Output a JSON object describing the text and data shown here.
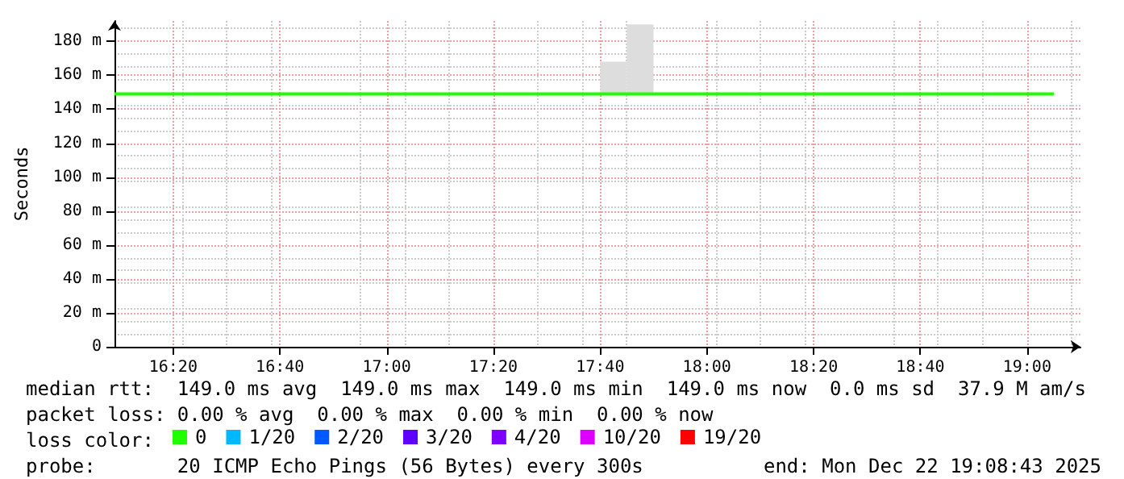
{
  "chart_data": {
    "type": "line",
    "ylabel": "Seconds",
    "xlim": [
      "2025-12-22T16:09",
      "2025-12-22T19:10"
    ],
    "xticks": [
      {
        "value": "2025-12-22T16:20",
        "label": "16:20"
      },
      {
        "value": "2025-12-22T16:40",
        "label": "16:40"
      },
      {
        "value": "2025-12-22T17:00",
        "label": "17:00"
      },
      {
        "value": "2025-12-22T17:20",
        "label": "17:20"
      },
      {
        "value": "2025-12-22T17:40",
        "label": "17:40"
      },
      {
        "value": "2025-12-22T18:00",
        "label": "18:00"
      },
      {
        "value": "2025-12-22T18:20",
        "label": "18:20"
      },
      {
        "value": "2025-12-22T18:40",
        "label": "18:40"
      },
      {
        "value": "2025-12-22T19:00",
        "label": "19:00"
      }
    ],
    "ylim": [
      0,
      192
    ],
    "yticks": [
      0,
      {
        "value": 20,
        "label": "20 m"
      },
      {
        "value": 40,
        "label": "40 m"
      },
      {
        "value": 60,
        "label": "60 m"
      },
      {
        "value": 80,
        "label": "80 m"
      },
      {
        "value": 100,
        "label": "100 m"
      },
      {
        "value": 120,
        "label": "120 m"
      },
      {
        "value": 140,
        "label": "140 m"
      },
      {
        "value": 160,
        "label": "160 m"
      },
      {
        "value": 180,
        "label": "180 m"
      }
    ],
    "grid": true,
    "legend": "bottom",
    "legend_title": "loss color:",
    "series": [
      {
        "type": "bar",
        "color": "#dddddd",
        "x": [
          "2025-12-22T17:42:30",
          "2025-12-22T17:47:30"
        ],
        "base": [
          149,
          149
        ],
        "values": [
          19,
          41
        ]
      },
      {
        "name": "0",
        "color": "#20ff00",
        "x": [
          "2025-12-22T16:09",
          "2025-12-22T19:05"
        ],
        "values": [
          149,
          149
        ]
      },
      {
        "name": "1/20",
        "color": "#00b8ff"
      },
      {
        "name": "2/20",
        "color": "#0059ff"
      },
      {
        "name": "3/20",
        "color": "#5e00ff"
      },
      {
        "name": "4/20",
        "color": "#7e00ff"
      },
      {
        "name": "10/20",
        "color": "#dd00ff"
      },
      {
        "name": "19/20",
        "color": "#ff0000"
      }
    ],
    "annotations": [
      "median rtt:  149.0 ms avg  149.0 ms max  149.0 ms min  149.0 ms now  0.0 ms sd  37.9 M am/s",
      "packet loss: 0.00 % avg  0.00 % max  0.00 % min  0.00 % now",
      "probe:       20 ICMP Echo Pings (56 Bytes) every 300s",
      "end: Mon Dec 22 19:08:43 2025"
    ]
  }
}
